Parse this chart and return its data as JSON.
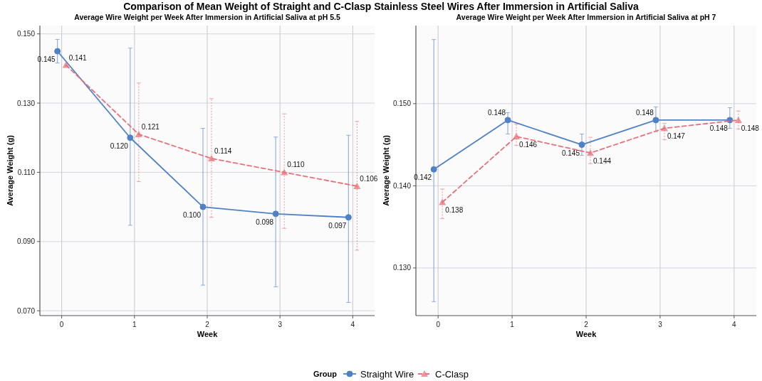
{
  "chart_data": [
    {
      "type": "line",
      "title": "Average Wire Weight per Week After Immersion in Artificial Saliva at pH 5.5",
      "annotations": [
        "Comparison of Mean Weight of Straight and C-Clasp Stainless Steel Wires After Immersion in Artificial Saliva"
      ],
      "xlabel": "Week",
      "ylabel": "Average Weight (g)",
      "categories": [
        "0",
        "1",
        "2",
        "3",
        "4"
      ],
      "series": [
        {
          "name": "Straight Wire",
          "color": "#4f81c7",
          "marker": "circle",
          "line_style": "solid",
          "values": [
            0.145,
            0.12,
            0.1,
            0.098,
            0.097
          ],
          "value_labels": [
            "0.145",
            "0.120",
            "0.100",
            "0.098",
            "0.097"
          ],
          "errors": [
            [
              0.1416,
              0.1484
            ],
            [
              0.0947,
              0.1459
            ],
            [
              0.0774,
              0.1227
            ],
            [
              0.0769,
              0.1202
            ],
            [
              0.0724,
              0.1207
            ]
          ]
        },
        {
          "name": "C-Clasp",
          "color": "#e8707a",
          "marker": "triangle",
          "line_style": "dashed",
          "values": [
            0.141,
            0.121,
            0.114,
            0.11,
            0.106
          ],
          "value_labels": [
            "0.141",
            "0.121",
            "0.114",
            "0.110",
            "0.106"
          ],
          "errors": [
            null,
            [
              0.1073,
              0.1358
            ],
            [
              0.097,
              0.1313
            ],
            [
              0.0938,
              0.1269
            ],
            [
              0.0875,
              0.1247
            ]
          ]
        }
      ],
      "ylim": [
        0.0686,
        0.1524
      ],
      "yticks": [
        {
          "value": 0.07,
          "label": "0.070"
        },
        {
          "value": 0.09,
          "label": "0.090"
        },
        {
          "value": 0.11,
          "label": "0.110"
        },
        {
          "value": 0.13,
          "label": "0.130"
        },
        {
          "value": 0.15,
          "label": "0.150"
        }
      ],
      "grid": true,
      "legend": "bottom",
      "legend_title": "Group"
    },
    {
      "type": "line",
      "title": "Average Wire Weight per Week After Immersion in Artificial Saliva at pH 7",
      "xlabel": "Week",
      "ylabel": "Average Weight (g)",
      "categories": [
        "0",
        "1",
        "2",
        "3",
        "4"
      ],
      "series": [
        {
          "color": "#4f81c7",
          "marker": "circle",
          "line_style": "solid",
          "values": [
            0.142,
            0.148,
            0.145,
            0.148,
            0.148
          ],
          "value_labels": [
            "0.142",
            "0.148",
            "0.145",
            "0.148",
            "0.148"
          ],
          "errors": [
            [
              0.1259,
              0.1578
            ],
            [
              0.1463,
              0.1489
            ],
            [
              0.1437,
              0.1463
            ],
            [
              0.1466,
              0.1496
            ],
            [
              0.147,
              0.1495
            ]
          ]
        },
        {
          "color": "#e8707a",
          "marker": "triangle",
          "line_style": "dashed",
          "values": [
            0.138,
            0.146,
            0.144,
            0.147,
            0.148
          ],
          "value_labels": [
            "0.138",
            "0.146",
            "0.144",
            "0.147",
            "0.148"
          ],
          "errors": [
            [
              0.136,
              0.1396
            ],
            [
              0.1449,
              0.1475
            ],
            [
              0.1427,
              0.1459
            ],
            [
              0.1456,
              0.1476
            ],
            [
              0.1469,
              0.1491
            ]
          ]
        }
      ],
      "ylim": [
        0.1242,
        0.1595
      ],
      "yticks": [
        {
          "value": 0.13,
          "label": "0.130"
        },
        {
          "value": 0.14,
          "label": "0.140"
        },
        {
          "value": 0.15,
          "label": "0.150"
        }
      ],
      "grid": true
    }
  ]
}
